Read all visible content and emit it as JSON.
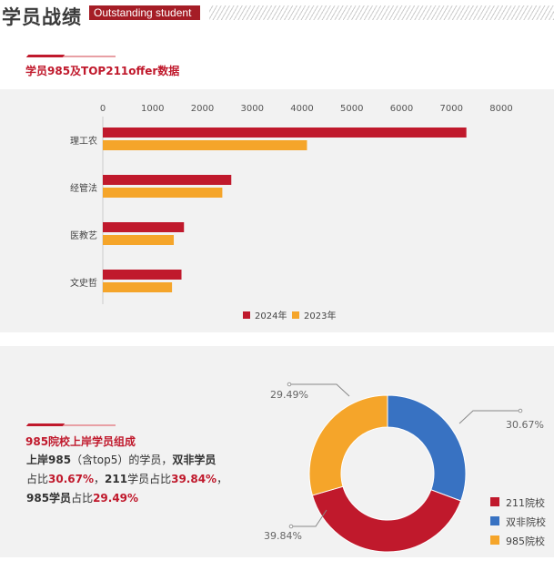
{
  "header": {
    "title": "学员战绩",
    "tag": "Outstanding student"
  },
  "section1": {
    "title": "学员985及TOP211offer数据"
  },
  "section2": {
    "title": "985院校上岸学员组成",
    "desc": {
      "p1": "上岸985",
      "p2": "（含top5）的学员，",
      "p3": "双非学员",
      "p4": "占比",
      "p5": "30.67%",
      "p6": "，",
      "p7": "211",
      "p8": "学员占比",
      "p9": "39.84%",
      "p10": "，",
      "p11": "985学员",
      "p12": "占比",
      "p13": "29.49%"
    }
  },
  "chart_data": [
    {
      "type": "bar",
      "orientation": "horizontal",
      "categories": [
        "理工农",
        "经管法",
        "医教艺",
        "文史哲"
      ],
      "xticks": [
        "0",
        "1000",
        "2000",
        "3000",
        "4000",
        "5000",
        "6000",
        "7000",
        "8000"
      ],
      "xlim": [
        0,
        8000
      ],
      "series": [
        {
          "name": "2024年",
          "color": "#c0192c",
          "values": [
            7300,
            2580,
            1630,
            1580
          ]
        },
        {
          "name": "2023年",
          "color": "#f5a52a",
          "values": [
            4100,
            2400,
            1425,
            1390
          ]
        }
      ],
      "legend": "bottom",
      "grid": false
    },
    {
      "type": "pie",
      "donut": true,
      "slices": [
        {
          "name": "双非院校",
          "value": 30.67,
          "label": "30.67%",
          "color": "#3872c2"
        },
        {
          "name": "211院校",
          "value": 39.84,
          "label": "39.84%",
          "color": "#c0192c"
        },
        {
          "name": "985院校",
          "value": 29.49,
          "label": "29.49%",
          "color": "#f5a52a"
        }
      ],
      "legend_order": [
        "211院校",
        "双非院校",
        "985院校"
      ],
      "legend": "bottom-right"
    }
  ]
}
